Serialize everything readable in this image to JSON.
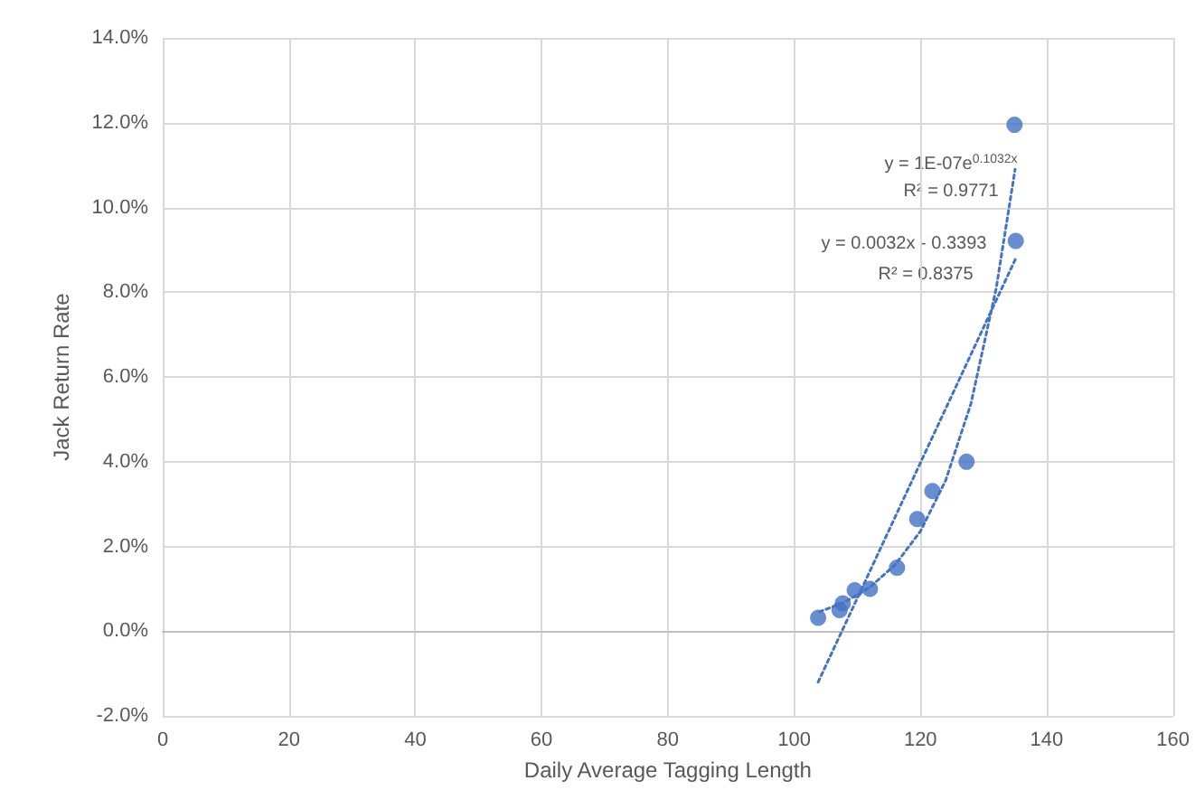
{
  "chart_data": {
    "type": "scatter",
    "xlabel": "Daily Average Tagging Length",
    "ylabel": "Jack Return Rate",
    "series": [
      {
        "color": "#4472c4",
        "marker": "circle",
        "x": [
          103.8,
          107.2,
          107.7,
          109.6,
          112.0,
          116.3,
          119.5,
          121.9,
          127.3,
          135.1,
          134.9
        ],
        "values": [
          0.0032,
          0.005,
          0.0066,
          0.0097,
          0.01,
          0.015,
          0.0265,
          0.0331,
          0.04,
          0.0921,
          0.1195
        ]
      },
      {
        "type": "line",
        "color": "#4472c4",
        "marker": "none",
        "line_style": "dotted",
        "x": [
          104,
          108,
          112,
          116,
          120,
          124,
          128,
          132,
          135
        ],
        "values": [
          0.0046,
          0.0069,
          0.0104,
          0.0157,
          0.0236,
          0.0356,
          0.0537,
          0.0809,
          0.109
        ]
      },
      {
        "type": "line",
        "color": "#4472c4",
        "marker": "none",
        "line_style": "dotted",
        "x": [
          103.8,
          135.1
        ],
        "values": [
          -0.012,
          0.088
        ]
      }
    ],
    "xlim": [
      0,
      160
    ],
    "xticks": [
      0,
      20,
      40,
      60,
      80,
      100,
      120,
      140,
      160
    ],
    "ylim": [
      -0.02,
      0.14
    ],
    "yticks": [
      {
        "value": -0.02,
        "label": "-2.0%"
      },
      {
        "value": 0,
        "label": "0.0%"
      },
      {
        "value": 0.02,
        "label": "2.0%"
      },
      {
        "value": 0.04,
        "label": "4.0%"
      },
      {
        "value": 0.06,
        "label": "6.0%"
      },
      {
        "value": 0.08,
        "label": "8.0%"
      },
      {
        "value": 0.1,
        "label": "10.0%"
      },
      {
        "value": 0.12,
        "label": "12.0%"
      },
      {
        "value": 0.14,
        "label": "14.0%"
      }
    ],
    "annotations": [
      "y = 1E-07e$^{0.1032x}$",
      "R² = 0.9771",
      "y = 0.0032x - 0.3393",
      "R² = 0.8375"
    ],
    "grid": true
  }
}
